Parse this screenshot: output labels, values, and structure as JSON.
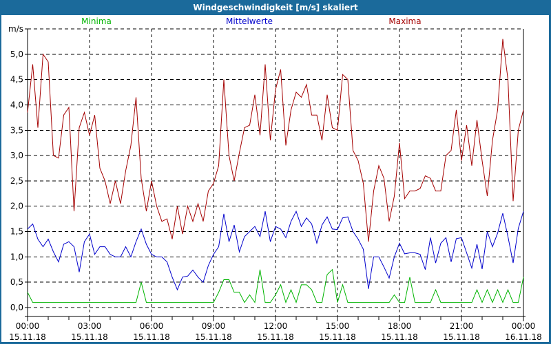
{
  "window": {
    "title": "Windgeschwindigkeit [m/s] skaliert"
  },
  "colors": {
    "titlebar": "#1b6a9b",
    "frame": "#1b6a9b",
    "title_text": "#ffffff",
    "grid": "#000000",
    "axis_text": "#000000",
    "minima": "#00b400",
    "mittelwerte": "#0000cc",
    "maxima": "#a40000"
  },
  "legend": {
    "items": [
      {
        "label": "Minima",
        "color": "#00b400"
      },
      {
        "label": "Mittelwerte",
        "color": "#0000cc"
      },
      {
        "label": "Maxima",
        "color": "#a40000"
      }
    ]
  },
  "chart_data": {
    "type": "line",
    "title": "Windgeschwindigkeit [m/s] skaliert",
    "ylabel": "m/s",
    "xlabel": "",
    "ylim": [
      0,
      5.5
    ],
    "grid": "dashed",
    "legend_position": "top",
    "sample_interval_minutes": 15,
    "x_major_tick_hours": 3,
    "x_minor_tick_hours": 1,
    "y_tick_values": [
      0,
      0.5,
      1.0,
      1.5,
      2.0,
      2.5,
      3.0,
      3.5,
      4.0,
      4.5,
      5.0
    ],
    "y_tick_labels": [
      "0,0",
      "0,5",
      "1,0",
      "1,5",
      "2,0",
      "2,5",
      "3,0",
      "3,5",
      "4,0",
      "4,5",
      "5,0"
    ],
    "x_ticks": [
      {
        "hour": 0,
        "time": "00:00",
        "date": "15.11.18"
      },
      {
        "hour": 3,
        "time": "03:00",
        "date": "15.11.18"
      },
      {
        "hour": 6,
        "time": "06:00",
        "date": "15.11.18"
      },
      {
        "hour": 9,
        "time": "09:00",
        "date": "15.11.18"
      },
      {
        "hour": 12,
        "time": "12:00",
        "date": "15.11.18"
      },
      {
        "hour": 15,
        "time": "15:00",
        "date": "15.11.18"
      },
      {
        "hour": 18,
        "time": "18:00",
        "date": "15.11.18"
      },
      {
        "hour": 21,
        "time": "21:00",
        "date": "15.11.18"
      },
      {
        "hour": 24,
        "time": "00:00",
        "date": "16.11.18"
      }
    ],
    "series": [
      {
        "name": "Minima",
        "color": "#00b400",
        "values": [
          0.3,
          0.1,
          0.1,
          0.1,
          0.1,
          0.1,
          0.1,
          0.1,
          0.1,
          0.1,
          0.1,
          0.1,
          0.1,
          0.1,
          0.1,
          0.1,
          0.1,
          0.1,
          0.1,
          0.1,
          0.1,
          0.1,
          0.5,
          0.1,
          0.1,
          0.1,
          0.1,
          0.1,
          0.1,
          0.1,
          0.1,
          0.1,
          0.1,
          0.1,
          0.1,
          0.1,
          0.1,
          0.3,
          0.55,
          0.55,
          0.3,
          0.3,
          0.1,
          0.25,
          0.1,
          0.75,
          0.1,
          0.1,
          0.25,
          0.45,
          0.1,
          0.35,
          0.1,
          0.45,
          0.45,
          0.35,
          0.1,
          0.1,
          0.65,
          0.75,
          0.1,
          0.45,
          0.1,
          0.1,
          0.1,
          0.1,
          0.1,
          0.1,
          0.1,
          0.1,
          0.1,
          0.25,
          0.1,
          0.1,
          0.6,
          0.1,
          0.1,
          0.1,
          0.1,
          0.35,
          0.1,
          0.1,
          0.1,
          0.1,
          0.1,
          0.1,
          0.1,
          0.35,
          0.1,
          0.35,
          0.1,
          0.35,
          0.1,
          0.35,
          0.1,
          0.1,
          0.6
        ]
      },
      {
        "name": "Mittelwerte",
        "color": "#0000cc",
        "values": [
          1.55,
          1.65,
          1.35,
          1.2,
          1.35,
          1.1,
          0.9,
          1.25,
          1.3,
          1.2,
          0.7,
          1.3,
          1.45,
          1.05,
          1.2,
          1.2,
          1.05,
          1.0,
          1.0,
          1.2,
          1.0,
          1.3,
          1.55,
          1.25,
          1.05,
          1.0,
          1.0,
          0.9,
          0.6,
          0.35,
          0.6,
          0.62,
          0.74,
          0.6,
          0.5,
          0.83,
          1.05,
          1.2,
          1.85,
          1.3,
          1.63,
          1.1,
          1.4,
          1.5,
          1.6,
          1.4,
          1.9,
          1.3,
          1.6,
          1.55,
          1.38,
          1.7,
          1.9,
          1.6,
          1.77,
          1.65,
          1.27,
          1.63,
          1.79,
          1.55,
          1.54,
          1.77,
          1.79,
          1.5,
          1.35,
          1.15,
          0.37,
          1.0,
          1.0,
          0.8,
          0.58,
          1.0,
          1.27,
          1.06,
          1.08,
          1.08,
          1.05,
          0.75,
          1.38,
          0.88,
          1.27,
          1.38,
          0.9,
          1.36,
          1.38,
          1.08,
          0.78,
          1.25,
          0.76,
          1.5,
          1.2,
          1.47,
          1.86,
          1.4,
          0.88,
          1.56,
          1.9
        ]
      },
      {
        "name": "Maxima",
        "color": "#a40000",
        "values": [
          3.85,
          4.8,
          3.55,
          5.0,
          4.85,
          3.0,
          2.95,
          3.8,
          3.95,
          1.9,
          3.55,
          3.85,
          3.4,
          3.8,
          2.75,
          2.5,
          2.05,
          2.5,
          2.05,
          2.7,
          3.2,
          4.15,
          2.55,
          1.9,
          2.5,
          2.0,
          1.7,
          1.75,
          1.35,
          2.0,
          1.45,
          2.0,
          1.7,
          2.05,
          1.7,
          2.3,
          2.45,
          2.8,
          4.5,
          3.0,
          2.5,
          3.05,
          3.55,
          3.6,
          4.2,
          3.4,
          4.8,
          3.3,
          4.3,
          4.7,
          3.2,
          3.9,
          4.25,
          4.15,
          4.4,
          3.8,
          3.8,
          3.3,
          4.2,
          3.55,
          3.5,
          4.6,
          4.5,
          3.1,
          2.9,
          2.45,
          1.3,
          2.3,
          2.8,
          2.55,
          1.7,
          2.2,
          3.25,
          2.15,
          2.3,
          2.3,
          2.35,
          2.6,
          2.55,
          2.3,
          2.3,
          3.0,
          3.1,
          3.9,
          2.9,
          3.6,
          2.8,
          3.7,
          2.9,
          2.2,
          3.3,
          3.9,
          5.3,
          4.5,
          2.1,
          3.5,
          3.9
        ]
      }
    ]
  }
}
